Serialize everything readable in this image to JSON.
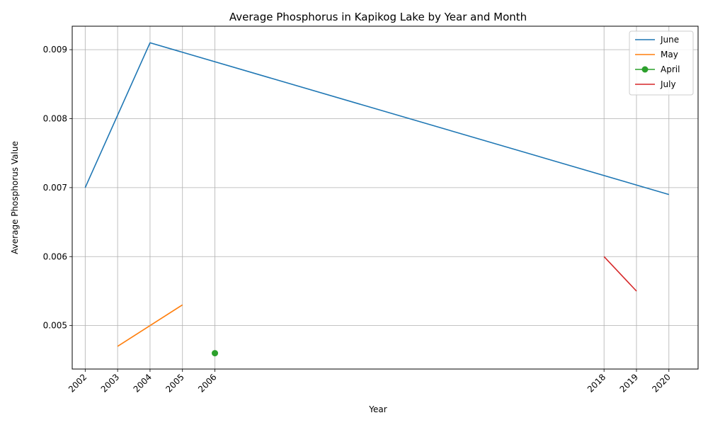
{
  "chart_data": {
    "type": "line",
    "title": "Average Phosphorus in Kapikog Lake by Year and Month",
    "xlabel": "Year",
    "ylabel": "Average Phosphorus Value",
    "x_ticks": [
      "2002",
      "2003",
      "2004",
      "2005",
      "2006",
      "2018",
      "2019",
      "2020"
    ],
    "x_tick_values": [
      2002,
      2003,
      2004,
      2005,
      2006,
      2018,
      2019,
      2020
    ],
    "xlim": [
      2001.6,
      2020.9
    ],
    "y_ticks": [
      "0.005",
      "0.006",
      "0.007",
      "0.008",
      "0.009"
    ],
    "y_tick_values": [
      0.005,
      0.006,
      0.007,
      0.008,
      0.009
    ],
    "ylim": [
      0.00437,
      0.00934
    ],
    "grid": true,
    "legend_position": "top-right",
    "series": [
      {
        "name": "June",
        "color": "#1f77b4",
        "marker": false,
        "x": [
          2002,
          2004,
          2020
        ],
        "y": [
          0.007,
          0.0091,
          0.0069
        ]
      },
      {
        "name": "May",
        "color": "#ff7f0e",
        "marker": false,
        "x": [
          2003,
          2005
        ],
        "y": [
          0.0047,
          0.0053
        ]
      },
      {
        "name": "April",
        "color": "#2ca02c",
        "marker": true,
        "x": [
          2006
        ],
        "y": [
          0.0046
        ]
      },
      {
        "name": "July",
        "color": "#d62728",
        "marker": false,
        "x": [
          2018,
          2019
        ],
        "y": [
          0.006,
          0.0055
        ]
      }
    ]
  }
}
